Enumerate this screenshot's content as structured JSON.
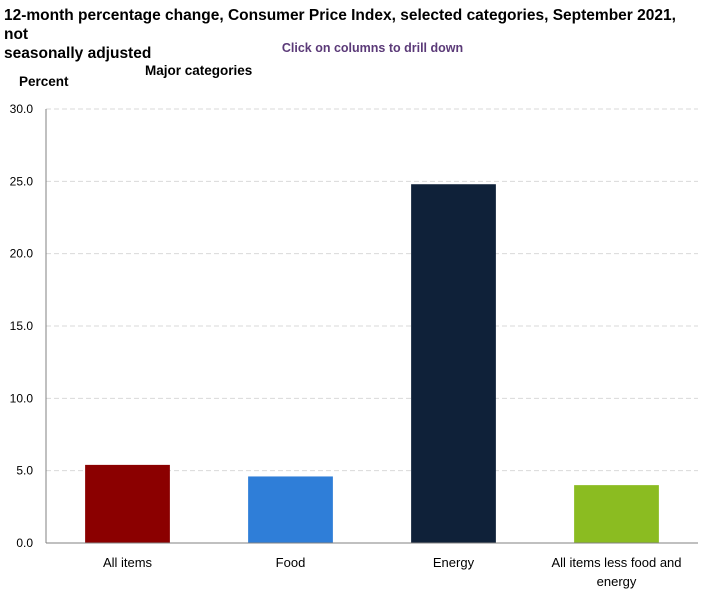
{
  "header": {
    "title_line1": "12-month percentage change, Consumer Price Index, selected categories, September 2021, not",
    "title_line2": "seasonally adjusted",
    "drill_hint": "Click on columns to drill down"
  },
  "chart_data": {
    "type": "bar",
    "title": "12-month percentage change, Consumer Price Index, selected categories, September 2021, not seasonally adjusted",
    "subtitle": "Major categories",
    "ylabel": "Percent",
    "xlabel": "",
    "ylim": [
      0,
      30
    ],
    "yticks": [
      "0.0",
      "5.0",
      "10.0",
      "15.0",
      "20.0",
      "25.0",
      "30.0"
    ],
    "grid": true,
    "legend": "none",
    "categories": [
      {
        "label_lines": [
          "All items"
        ],
        "value": 5.4,
        "color": "#8b0000"
      },
      {
        "label_lines": [
          "Food"
        ],
        "value": 4.6,
        "color": "#2f7ed8"
      },
      {
        "label_lines": [
          "Energy"
        ],
        "value": 24.8,
        "color": "#0f2139"
      },
      {
        "label_lines": [
          "All items less food and",
          "energy"
        ],
        "value": 4.0,
        "color": "#8bbc21"
      }
    ]
  }
}
